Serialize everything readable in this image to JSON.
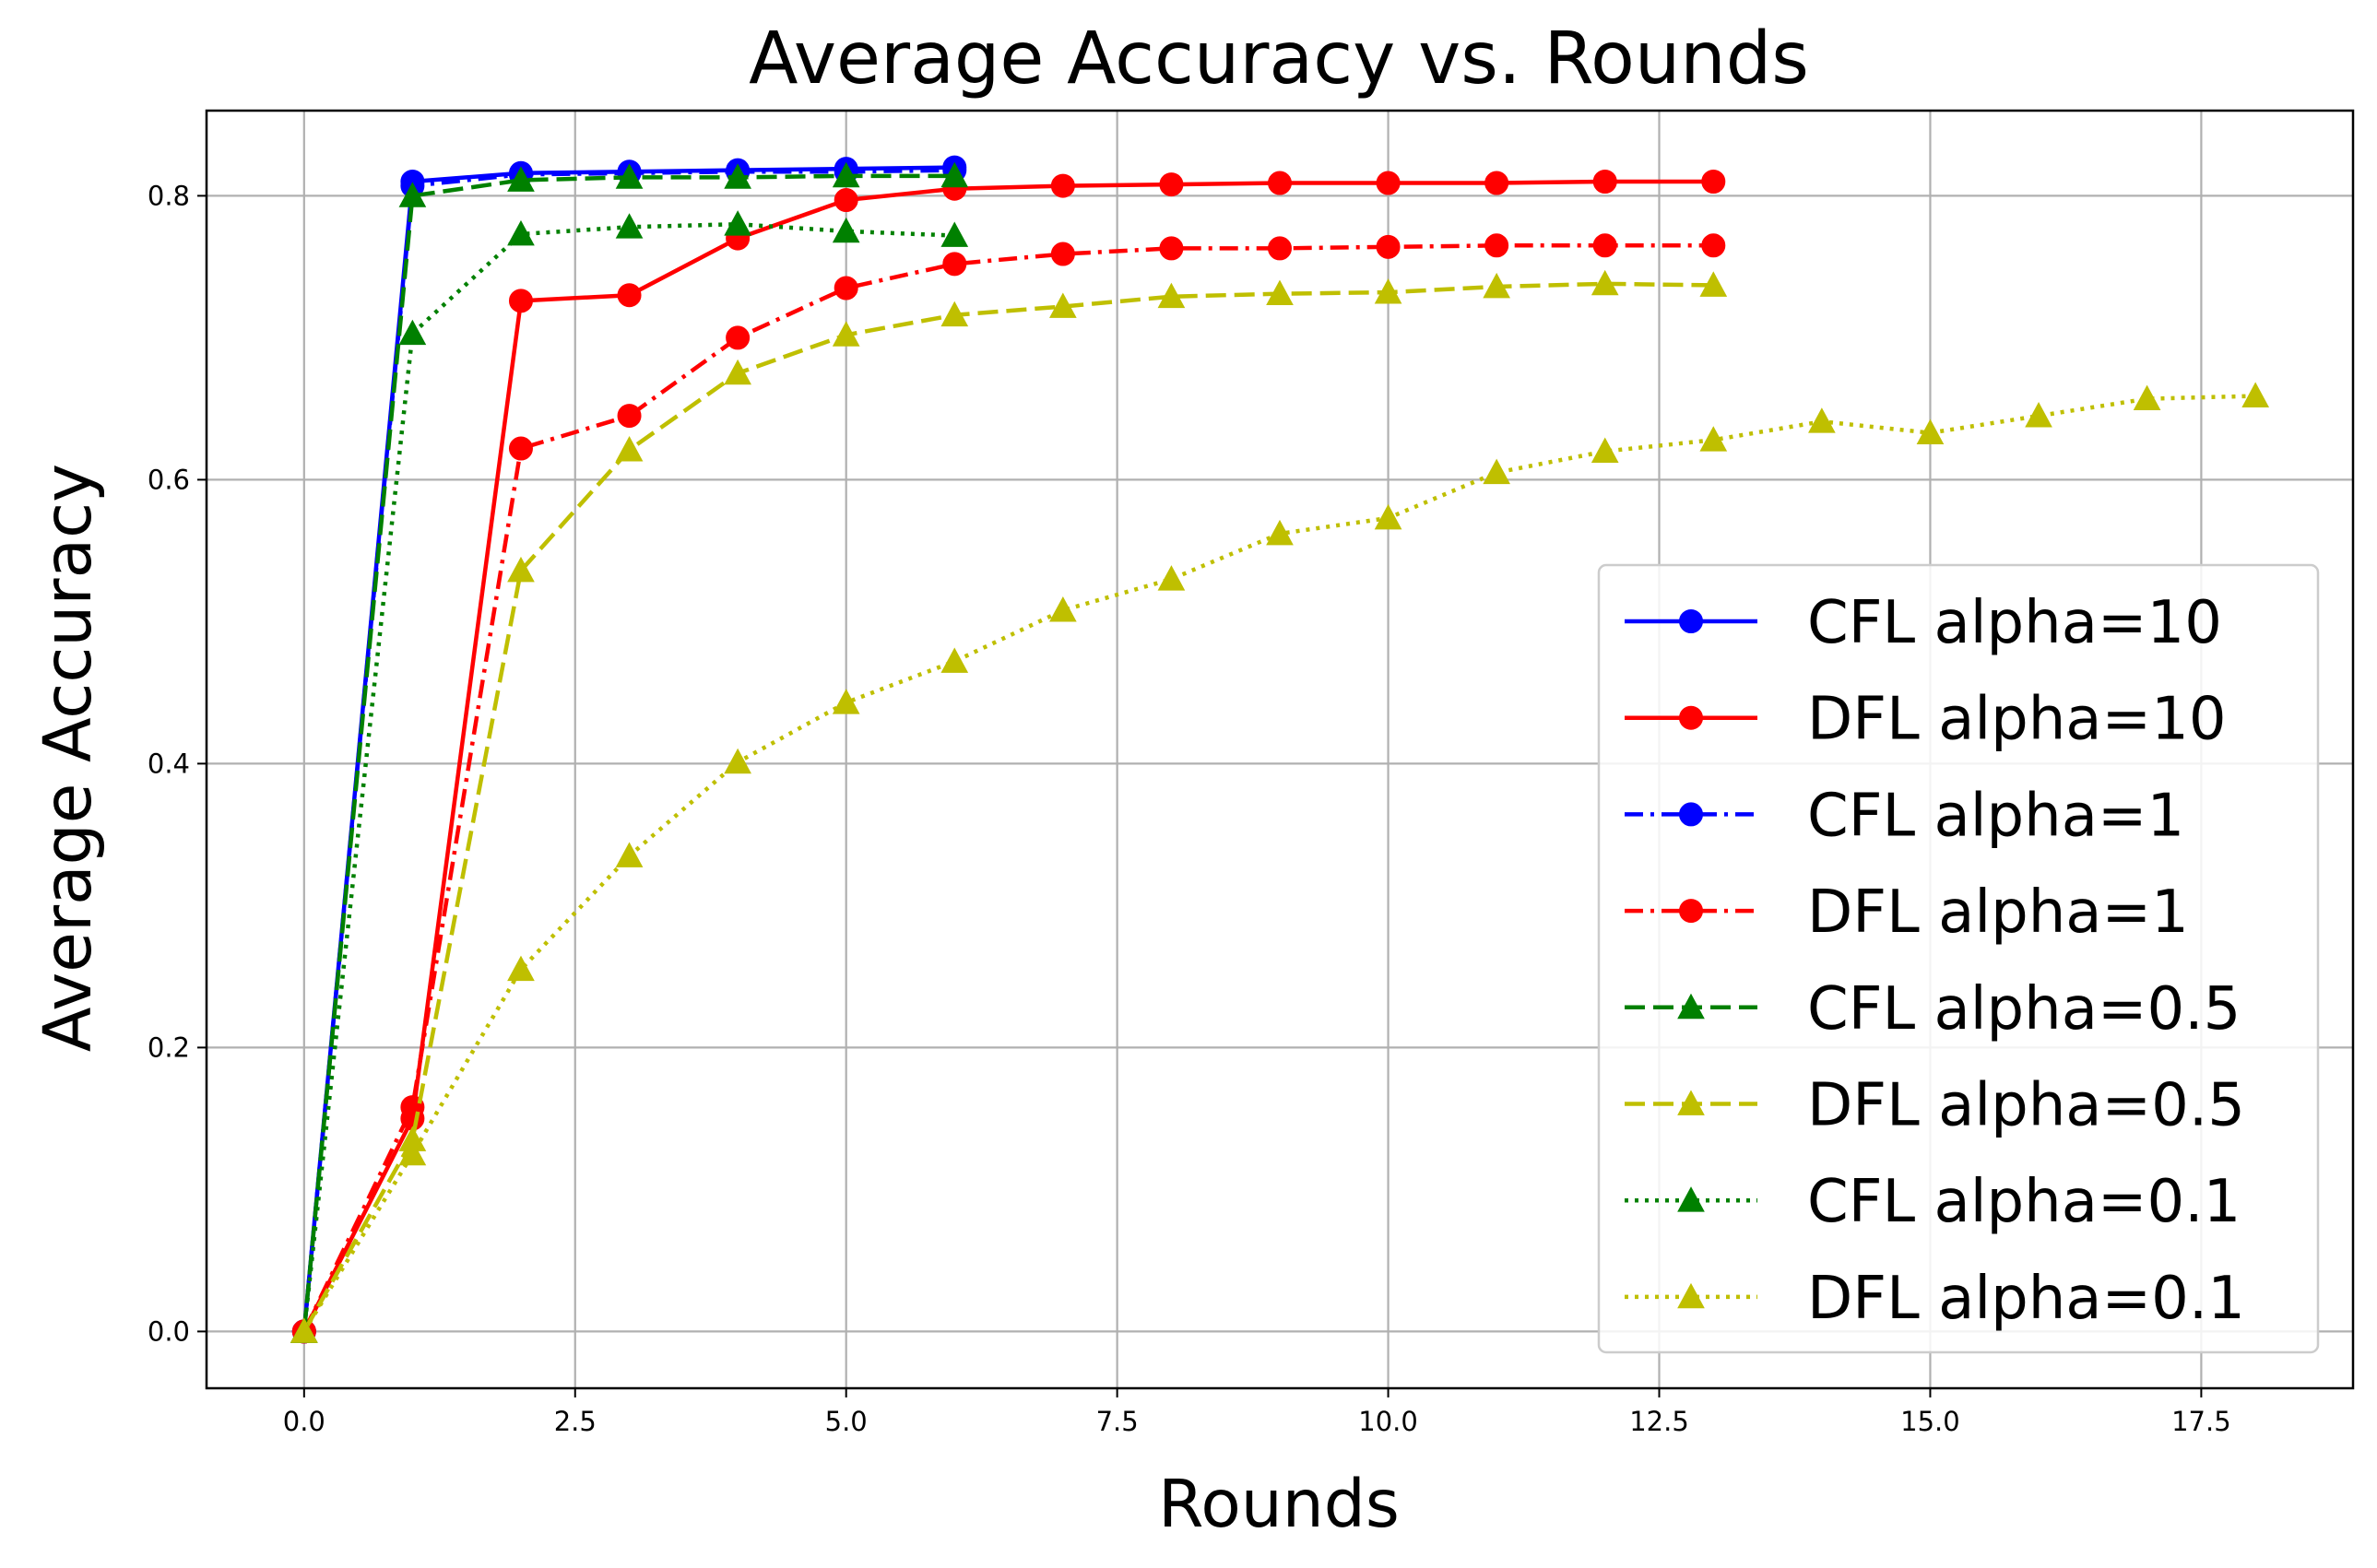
{
  "chart_data": {
    "type": "line",
    "title": "Average Accuracy vs. Rounds",
    "xlabel": "Rounds",
    "ylabel": "Average Accuracy",
    "xlim": [
      -0.9,
      18.9
    ],
    "ylim": [
      -0.04,
      0.86
    ],
    "xticks": [
      0.0,
      2.5,
      5.0,
      7.5,
      10.0,
      12.5,
      15.0,
      17.5
    ],
    "xtick_labels": [
      "0.0",
      "2.5",
      "5.0",
      "7.5",
      "10.0",
      "12.5",
      "15.0",
      "17.5"
    ],
    "yticks": [
      0.0,
      0.2,
      0.4,
      0.6,
      0.8
    ],
    "ytick_labels": [
      "0.0",
      "0.2",
      "0.4",
      "0.6",
      "0.8"
    ],
    "grid": true,
    "legend_position": "lower-right",
    "series": [
      {
        "name": "CFL alpha=10",
        "color": "#0000ff",
        "linestyle": "solid",
        "marker": "circle",
        "x": [
          0,
          1,
          2,
          3,
          4,
          5,
          6
        ],
        "y": [
          0.0,
          0.81,
          0.816,
          0.817,
          0.818,
          0.819,
          0.82
        ]
      },
      {
        "name": "DFL alpha=10",
        "color": "#ff0000",
        "linestyle": "solid",
        "marker": "circle",
        "x": [
          0,
          1,
          2,
          3,
          4,
          5,
          6,
          7,
          8,
          9,
          10,
          11,
          12,
          13
        ],
        "y": [
          0.0,
          0.15,
          0.726,
          0.73,
          0.77,
          0.797,
          0.805,
          0.807,
          0.808,
          0.809,
          0.809,
          0.809,
          0.81,
          0.81
        ]
      },
      {
        "name": "CFL alpha=1",
        "color": "#0000ff",
        "linestyle": "dashdot",
        "marker": "circle",
        "x": [
          0,
          1,
          2,
          3,
          4,
          5,
          6
        ],
        "y": [
          0.0,
          0.807,
          0.815,
          0.816,
          0.817,
          0.817,
          0.818
        ]
      },
      {
        "name": "DFL alpha=1",
        "color": "#ff0000",
        "linestyle": "dashdot",
        "marker": "circle",
        "x": [
          0,
          1,
          2,
          3,
          4,
          5,
          6,
          7,
          8,
          9,
          10,
          11,
          12,
          13
        ],
        "y": [
          0.0,
          0.158,
          0.622,
          0.645,
          0.7,
          0.735,
          0.752,
          0.759,
          0.763,
          0.763,
          0.764,
          0.765,
          0.765,
          0.765
        ]
      },
      {
        "name": "CFL alpha=0.5",
        "color": "#008000",
        "linestyle": "dashed",
        "marker": "triangle",
        "x": [
          0,
          1,
          2,
          3,
          4,
          5,
          6
        ],
        "y": [
          0.0,
          0.8,
          0.811,
          0.813,
          0.813,
          0.814,
          0.814
        ]
      },
      {
        "name": "DFL alpha=0.5",
        "color": "#bfbf00",
        "linestyle": "dashed",
        "marker": "triangle",
        "x": [
          0,
          1,
          2,
          3,
          4,
          5,
          6,
          7,
          8,
          9,
          10,
          11,
          12,
          13
        ],
        "y": [
          0.0,
          0.135,
          0.536,
          0.621,
          0.675,
          0.702,
          0.716,
          0.722,
          0.729,
          0.731,
          0.732,
          0.736,
          0.738,
          0.737
        ]
      },
      {
        "name": "CFL alpha=0.1",
        "color": "#008000",
        "linestyle": "dotted",
        "marker": "triangle",
        "x": [
          0,
          1,
          2,
          3,
          4,
          5,
          6
        ],
        "y": [
          0.0,
          0.703,
          0.773,
          0.778,
          0.78,
          0.775,
          0.772
        ]
      },
      {
        "name": "DFL alpha=0.1",
        "color": "#bfbf00",
        "linestyle": "dotted",
        "marker": "triangle",
        "x": [
          0,
          1,
          2,
          3,
          4,
          5,
          6,
          7,
          8,
          9,
          10,
          11,
          12,
          13,
          14,
          15,
          16,
          17,
          18
        ],
        "y": [
          0.0,
          0.125,
          0.255,
          0.335,
          0.401,
          0.443,
          0.472,
          0.508,
          0.53,
          0.562,
          0.573,
          0.605,
          0.62,
          0.628,
          0.641,
          0.633,
          0.645,
          0.657,
          0.659
        ]
      }
    ]
  }
}
